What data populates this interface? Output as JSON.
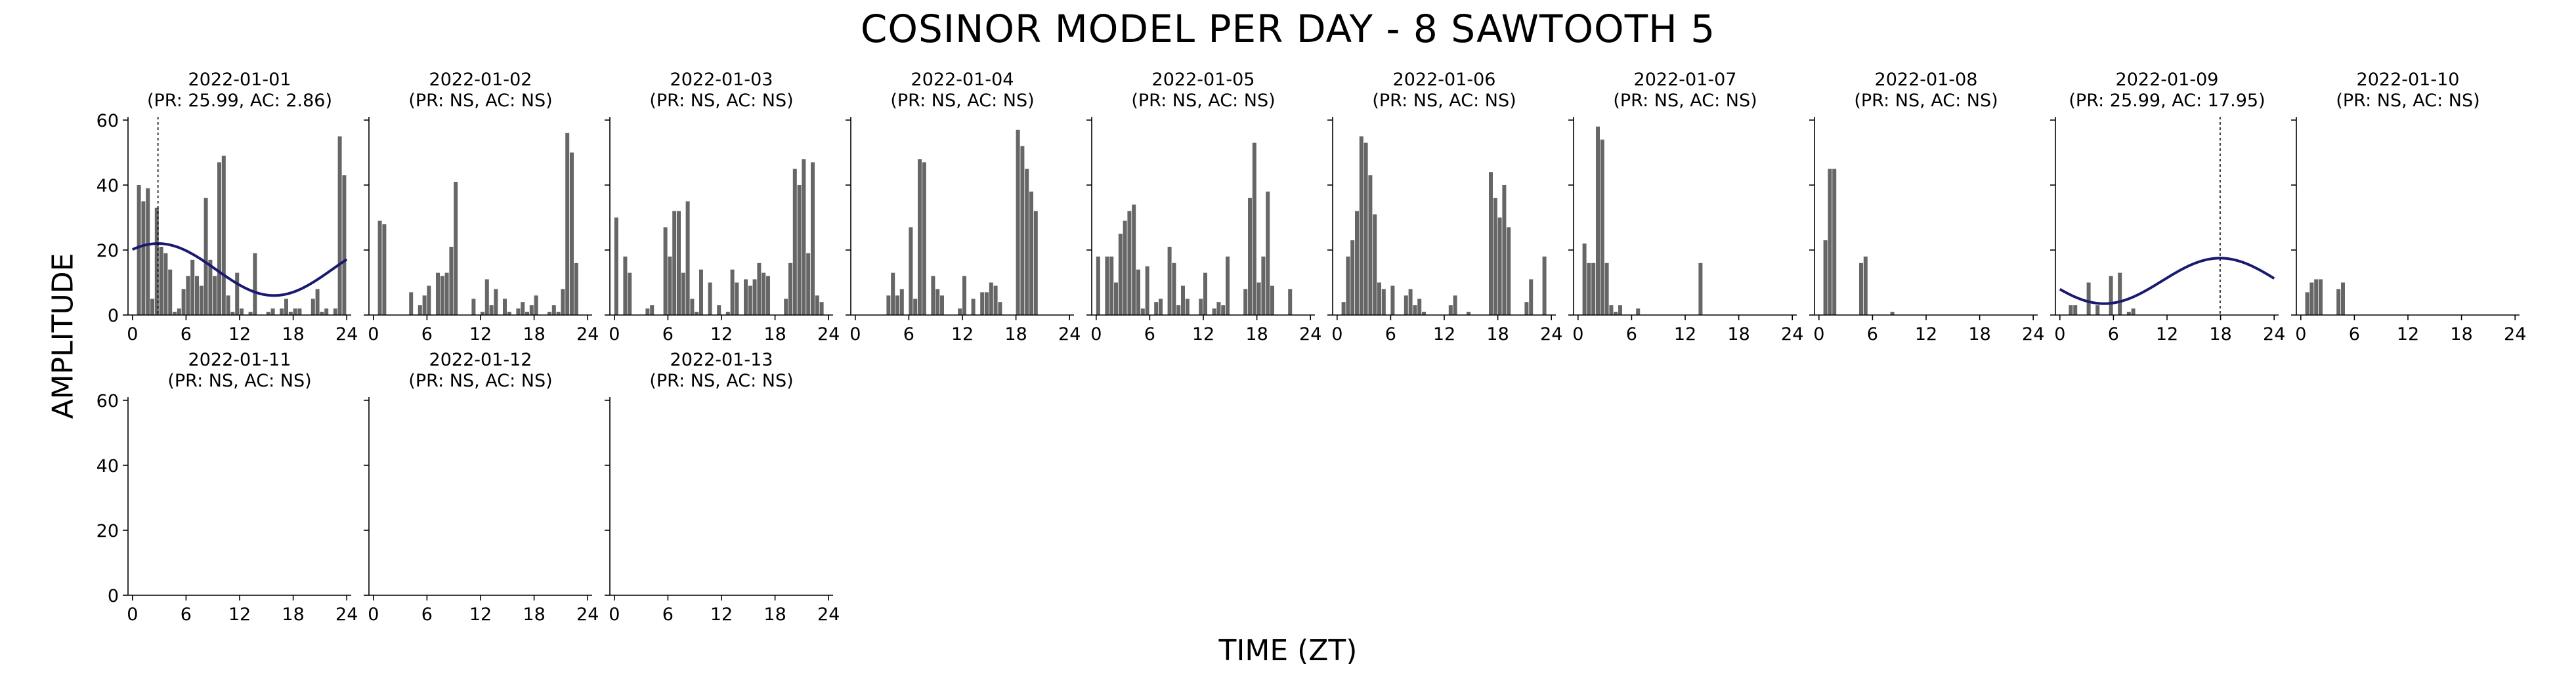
{
  "figure": {
    "title": "COSINOR MODEL PER DAY - 8 SAWTOOTH 5",
    "xlabel": "TIME (ZT)",
    "ylabel": "AMPLITUDE",
    "bar_color": "#666666",
    "curve_color": "#191970"
  },
  "chart_data": {
    "type": "bar",
    "layout": "small-multiples, 2 rows x 10 columns (13 panels)",
    "x_ticks": [
      0,
      6,
      12,
      18,
      24
    ],
    "y_ticks": [
      0,
      20,
      40,
      60
    ],
    "xlim": [
      -0.5,
      24.5
    ],
    "ylim": [
      0,
      61
    ],
    "bin_width_hours": 0.5,
    "panels": [
      {
        "title": "2022-01-01",
        "subtitle": "(PR: 25.99, AC: 2.86)",
        "values": [
          0,
          40,
          35,
          39,
          5,
          33,
          21,
          19,
          14,
          1,
          2,
          8,
          12,
          17,
          12,
          9,
          36,
          17,
          12,
          47,
          49,
          6,
          1,
          13,
          2,
          0,
          1,
          19,
          0,
          0,
          1,
          2,
          0,
          2,
          5,
          1,
          2,
          2,
          0,
          0,
          5,
          8,
          1,
          2,
          0,
          2,
          55,
          43
        ],
        "fit": {
          "mesor": 14,
          "amplitude": 8,
          "acrophase": 2.86,
          "period": 25.99
        }
      },
      {
        "title": "2022-01-02",
        "subtitle": "(PR: NS, AC: NS)",
        "values": [
          0,
          29,
          28,
          0,
          0,
          0,
          0,
          0,
          7,
          0,
          3,
          6,
          9,
          0,
          13,
          12,
          13,
          21,
          41,
          0,
          0,
          0,
          5,
          0,
          1,
          11,
          3,
          8,
          0,
          5,
          1,
          0,
          2,
          4,
          1,
          3,
          6,
          0,
          0,
          1,
          3,
          1,
          8,
          56,
          50,
          16,
          0,
          0
        ]
      },
      {
        "title": "2022-01-03",
        "subtitle": "(PR: NS, AC: NS)",
        "values": [
          30,
          0,
          18,
          13,
          0,
          0,
          0,
          2,
          3,
          0,
          0,
          27,
          18,
          32,
          32,
          13,
          35,
          5,
          1,
          14,
          0,
          10,
          0,
          3,
          0,
          1,
          14,
          10,
          0,
          11,
          9,
          11,
          16,
          13,
          12,
          0,
          0,
          0,
          5,
          16,
          45,
          40,
          48,
          19,
          47,
          6,
          4,
          0
        ]
      },
      {
        "title": "2022-01-04",
        "subtitle": "(PR: NS, AC: NS)",
        "values": [
          0,
          0,
          0,
          0,
          0,
          0,
          0,
          6,
          13,
          6,
          8,
          0,
          27,
          5,
          48,
          47,
          0,
          12,
          8,
          6,
          0,
          0,
          0,
          2,
          12,
          0,
          5,
          0,
          7,
          7,
          10,
          9,
          4,
          0,
          0,
          0,
          57,
          52,
          45,
          38,
          32,
          0,
          0,
          0,
          0,
          0,
          0,
          0
        ]
      },
      {
        "title": "2022-01-05",
        "subtitle": "(PR: NS, AC: NS)",
        "values": [
          18,
          0,
          18,
          18,
          10,
          25,
          29,
          32,
          34,
          14,
          2,
          15,
          0,
          4,
          5,
          0,
          21,
          16,
          3,
          9,
          5,
          0,
          0,
          5,
          13,
          0,
          2,
          4,
          3,
          18,
          0,
          0,
          0,
          8,
          36,
          53,
          10,
          18,
          38,
          9,
          0,
          0,
          0,
          8,
          0,
          0,
          0,
          0
        ]
      },
      {
        "title": "2022-01-06",
        "subtitle": "(PR: NS, AC: NS)",
        "values": [
          0,
          4,
          18,
          23,
          32,
          55,
          53,
          43,
          31,
          10,
          8,
          0,
          9,
          0,
          0,
          6,
          8,
          3,
          5,
          1,
          0,
          0,
          0,
          0,
          0,
          3,
          6,
          0,
          0,
          1,
          0,
          0,
          0,
          0,
          44,
          36,
          30,
          40,
          27,
          0,
          0,
          0,
          4,
          11,
          0,
          0,
          18,
          0
        ]
      },
      {
        "title": "2022-01-07",
        "subtitle": "(PR: NS, AC: NS)",
        "values": [
          0,
          22,
          16,
          16,
          58,
          54,
          16,
          3,
          1,
          3,
          0,
          0,
          0,
          2,
          0,
          0,
          0,
          0,
          0,
          0,
          0,
          0,
          0,
          0,
          0,
          0,
          0,
          16,
          0,
          0,
          0,
          0,
          0,
          0,
          0,
          0,
          0,
          0,
          0,
          0,
          0,
          0,
          0,
          0,
          0,
          0,
          0,
          0
        ]
      },
      {
        "title": "2022-01-08",
        "subtitle": "(PR: NS, AC: NS)",
        "values": [
          0,
          23,
          45,
          45,
          0,
          0,
          0,
          0,
          0,
          16,
          18,
          0,
          0,
          0,
          0,
          0,
          1,
          0,
          0,
          0,
          0,
          0,
          0,
          0,
          0,
          0,
          0,
          0,
          0,
          0,
          0,
          0,
          0,
          0,
          0,
          0,
          0,
          0,
          0,
          0,
          0,
          0,
          0,
          0,
          0,
          0,
          0,
          0
        ]
      },
      {
        "title": "2022-01-09",
        "subtitle": "(PR: 25.99, AC: 17.95)",
        "values": [
          0,
          0,
          3,
          3,
          0,
          0,
          10,
          0,
          3,
          0,
          0,
          12,
          0,
          13,
          0,
          1,
          2,
          0,
          0,
          0,
          0,
          0,
          0,
          0,
          0,
          0,
          0,
          0,
          0,
          0,
          0,
          0,
          0,
          0,
          0,
          0,
          0,
          0,
          0,
          0,
          0,
          0,
          0,
          0,
          0,
          0,
          0,
          0
        ],
        "fit": {
          "mesor": 10.5,
          "amplitude": 7,
          "acrophase": 17.95,
          "period": 25.99
        }
      },
      {
        "title": "2022-01-10",
        "subtitle": "(PR: NS, AC: NS)",
        "values": [
          0,
          7,
          10,
          11,
          11,
          0,
          0,
          0,
          8,
          10,
          0,
          0,
          0,
          0,
          0,
          0,
          0,
          0,
          0,
          0,
          0,
          0,
          0,
          0,
          0,
          0,
          0,
          0,
          0,
          0,
          0,
          0,
          0,
          0,
          0,
          0,
          0,
          0,
          0,
          0,
          0,
          0,
          0,
          0,
          0,
          0,
          0,
          0
        ]
      },
      {
        "title": "2022-01-11",
        "subtitle": "(PR: NS, AC: NS)",
        "values": [
          0,
          0,
          0,
          0,
          0,
          0,
          0,
          0,
          0,
          0,
          0,
          0,
          0,
          0,
          0,
          0,
          0,
          0,
          0,
          0,
          0,
          0,
          0,
          0,
          0,
          0,
          0,
          0,
          0,
          0,
          0,
          0,
          0,
          0,
          0,
          0,
          0,
          0,
          0,
          0,
          0,
          0,
          0,
          0,
          0,
          0,
          0,
          0
        ]
      },
      {
        "title": "2022-01-12",
        "subtitle": "(PR: NS, AC: NS)",
        "values": [
          0,
          0,
          0,
          0,
          0,
          0,
          0,
          0,
          0,
          0,
          0,
          0,
          0,
          0,
          0,
          0,
          0,
          0,
          0,
          0,
          0,
          0,
          0,
          0,
          0,
          0,
          0,
          0,
          0,
          0,
          0,
          0,
          0,
          0,
          0,
          0,
          0,
          0,
          0,
          0,
          0,
          0,
          0,
          0,
          0,
          0,
          0,
          0
        ]
      },
      {
        "title": "2022-01-13",
        "subtitle": "(PR: NS, AC: NS)",
        "values": [
          0,
          0,
          0,
          0,
          0,
          0,
          0,
          0,
          0,
          0,
          0,
          0,
          0,
          0,
          0,
          0,
          0,
          0,
          0,
          0,
          0,
          0,
          0,
          0,
          0,
          0,
          0,
          0,
          0,
          0,
          0,
          0,
          0,
          0,
          0,
          0,
          0,
          0,
          0,
          0,
          0,
          0,
          0,
          0,
          0,
          0,
          0,
          0
        ]
      }
    ]
  }
}
